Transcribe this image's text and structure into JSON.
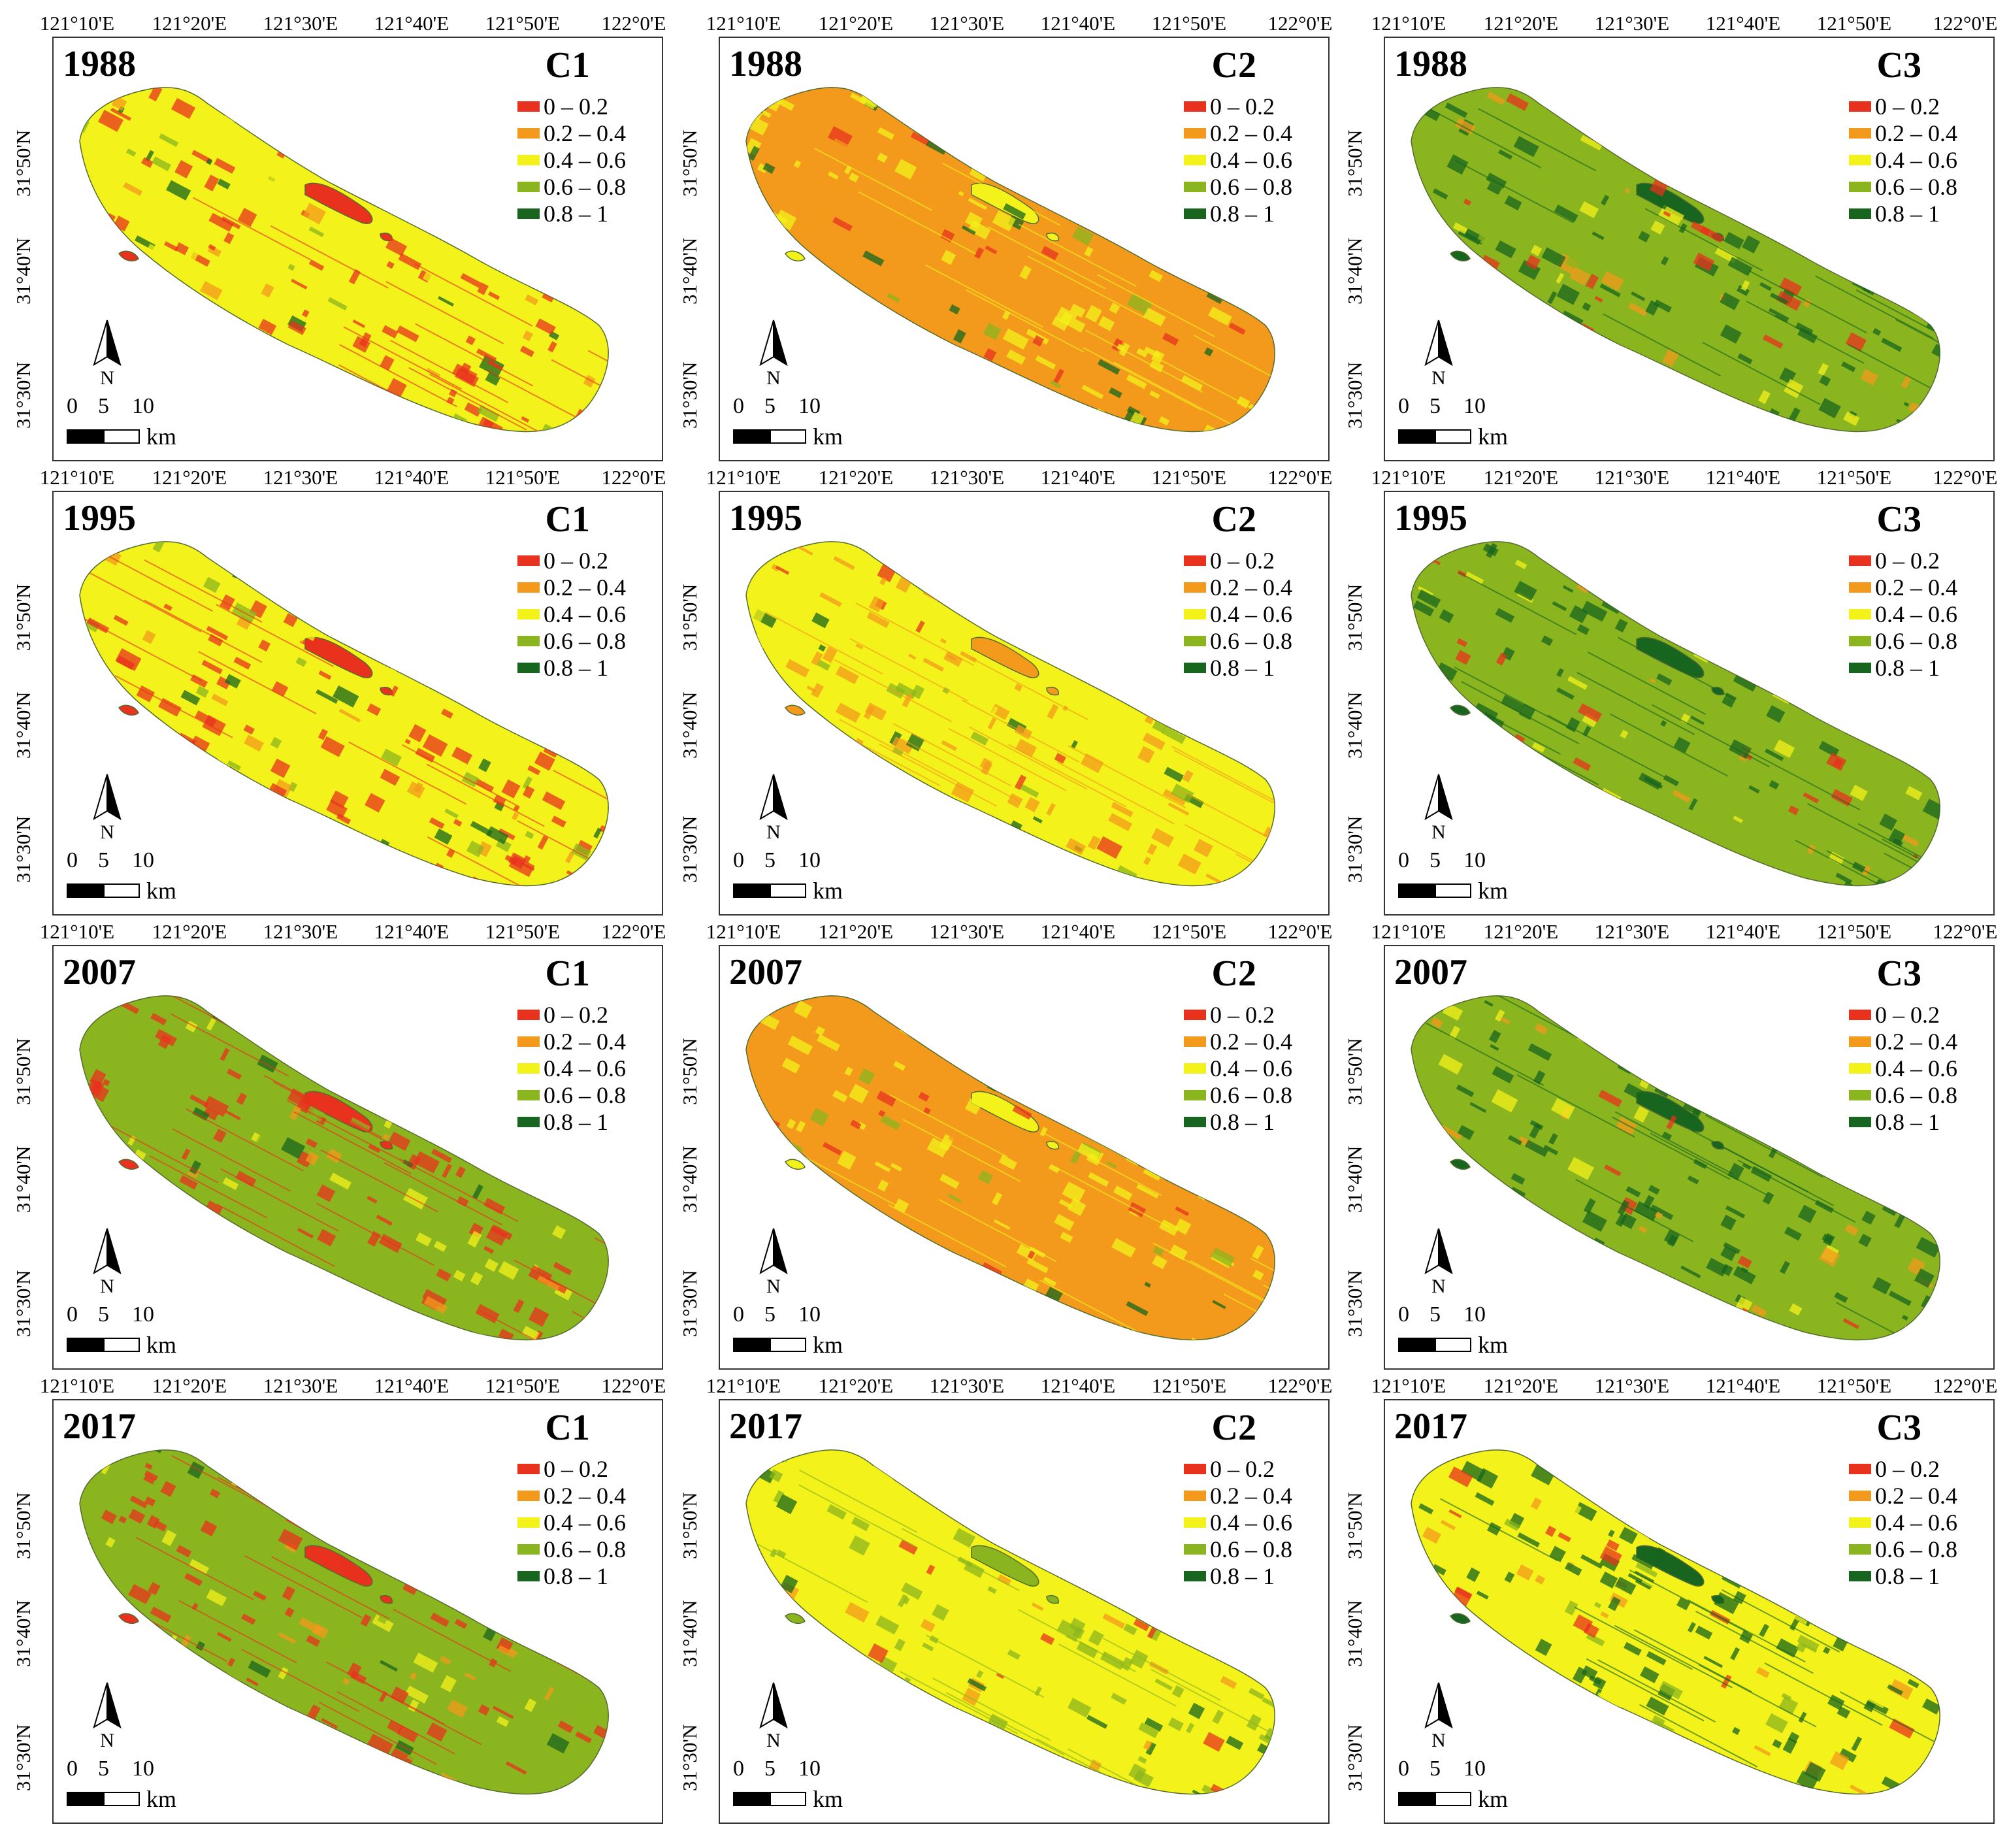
{
  "lon_ticks": [
    "121°10'E",
    "121°20'E",
    "121°30'E",
    "121°40'E",
    "121°50'E",
    "122°0'E"
  ],
  "lat_ticks": [
    "31°50'N",
    "31°40'N",
    "31°30'N"
  ],
  "legend": {
    "classes": [
      {
        "label": "0 – 0.2",
        "color": "#e8321e"
      },
      {
        "label": "0.2 – 0.4",
        "color": "#f39a1c"
      },
      {
        "label": "0.4 – 0.6",
        "color": "#f3f21a"
      },
      {
        "label": "0.6 – 0.8",
        "color": "#8bb51e"
      },
      {
        "label": "0.8 – 1",
        "color": "#17651e"
      }
    ]
  },
  "north_label": "N",
  "scale_bar": {
    "ticks": [
      "0",
      "5",
      "10"
    ],
    "unit": "km"
  },
  "years": [
    "1988",
    "1995",
    "2007",
    "2017"
  ],
  "components": [
    "C1",
    "C2",
    "C3"
  ],
  "panels": [
    {
      "year": "1988",
      "component": "C1",
      "dominant_class": "0.4 – 0.6",
      "secondary_class": "0 – 0.2"
    },
    {
      "year": "1988",
      "component": "C2",
      "dominant_class": "0.2 – 0.4",
      "secondary_class": "0.4 – 0.6"
    },
    {
      "year": "1988",
      "component": "C3",
      "dominant_class": "0.6 – 0.8",
      "secondary_class": "0.8 – 1"
    },
    {
      "year": "1995",
      "component": "C1",
      "dominant_class": "0.4 – 0.6",
      "secondary_class": "0 – 0.2"
    },
    {
      "year": "1995",
      "component": "C2",
      "dominant_class": "0.4 – 0.6",
      "secondary_class": "0.2 – 0.4"
    },
    {
      "year": "1995",
      "component": "C3",
      "dominant_class": "0.6 – 0.8",
      "secondary_class": "0.8 – 1"
    },
    {
      "year": "2007",
      "component": "C1",
      "dominant_class": "0.6 – 0.8",
      "secondary_class": "0 – 0.2"
    },
    {
      "year": "2007",
      "component": "C2",
      "dominant_class": "0.2 – 0.4",
      "secondary_class": "0.4 – 0.6"
    },
    {
      "year": "2007",
      "component": "C3",
      "dominant_class": "0.6 – 0.8",
      "secondary_class": "0.8 – 1"
    },
    {
      "year": "2017",
      "component": "C1",
      "dominant_class": "0.6 – 0.8",
      "secondary_class": "0 – 0.2"
    },
    {
      "year": "2017",
      "component": "C2",
      "dominant_class": "0.4 – 0.6",
      "secondary_class": "0.6 – 0.8"
    },
    {
      "year": "2017",
      "component": "C3",
      "dominant_class": "0.4 – 0.6",
      "secondary_class": "0.8 – 1"
    }
  ]
}
